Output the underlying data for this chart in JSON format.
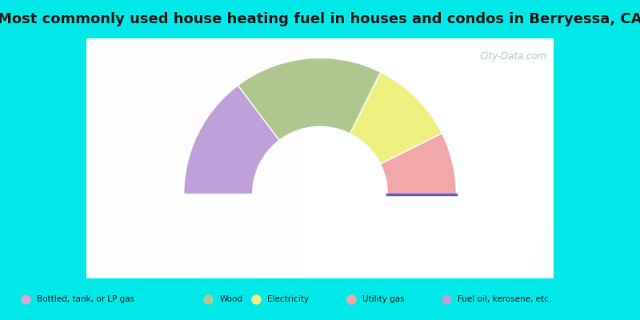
{
  "title": "Most commonly used house heating fuel in houses and condos in Berryessa, CA",
  "bg_cyan": "#00e8e8",
  "title_fontsize": 13,
  "watermark": "City-Data.com",
  "ordered_segments": [
    {
      "label": "Fuel oil, kerosene, etc.",
      "value": 50,
      "color": "#c0a0d8"
    },
    {
      "label": "Wood",
      "value": 60,
      "color": "#b0c890"
    },
    {
      "label": "Electricity",
      "value": 35,
      "color": "#f0f080"
    },
    {
      "label": "Utility gas",
      "value": 25,
      "color": "#f0a8a8"
    }
  ],
  "tiny_end_color": "#6060d0",
  "outer_r": 1.05,
  "inner_r": 0.52,
  "legend_labels": [
    "Bottled, tank, or LP gas",
    "Wood",
    "Electricity",
    "Utility gas",
    "Fuel oil, kerosene, etc."
  ],
  "legend_colors": [
    "#d8a8d8",
    "#b0c890",
    "#f0f080",
    "#f0a8a8",
    "#c0a0d8"
  ]
}
